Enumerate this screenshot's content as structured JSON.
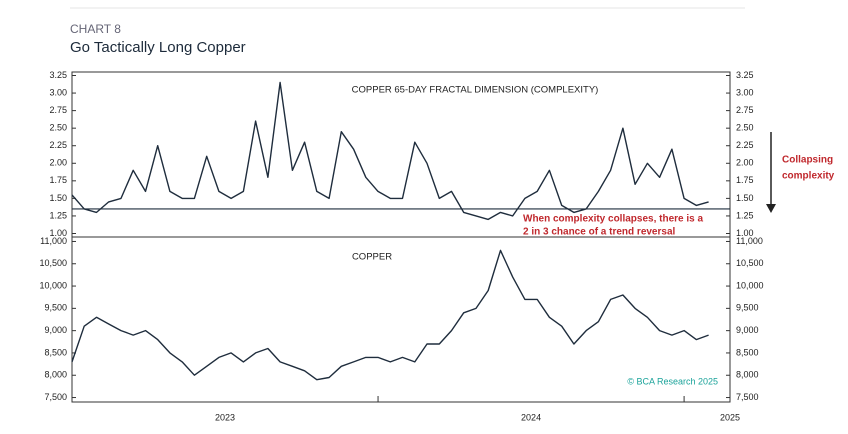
{
  "header": {
    "label": "CHART 8",
    "title": "Go Tactically Long Copper"
  },
  "footer": {
    "source": "© BCA Research 2025"
  },
  "chart_data": [
    {
      "type": "line",
      "title": "COPPER 65-DAY FRACTAL DIMENSION (COMPLEXITY)",
      "annotations": [
        "When complexity collapses, there is a",
        "2 in 3 chance of a trend reversal",
        "Collapsing",
        "complexity"
      ],
      "x": [
        2023.0,
        2023.04,
        2023.08,
        2023.12,
        2023.16,
        2023.2,
        2023.24,
        2023.28,
        2023.32,
        2023.36,
        2023.4,
        2023.44,
        2023.48,
        2023.52,
        2023.56,
        2023.6,
        2023.64,
        2023.68,
        2023.72,
        2023.76,
        2023.8,
        2023.84,
        2023.88,
        2023.92,
        2023.96,
        2024.0,
        2024.04,
        2024.08,
        2024.12,
        2024.16,
        2024.2,
        2024.24,
        2024.28,
        2024.32,
        2024.36,
        2024.4,
        2024.44,
        2024.48,
        2024.52,
        2024.56,
        2024.6,
        2024.64,
        2024.68,
        2024.72,
        2024.76,
        2024.8,
        2024.84,
        2024.88,
        2024.92,
        2024.96,
        2025.0,
        2025.04,
        2025.08
      ],
      "series": [
        {
          "name": "Fractal dimension",
          "color": "#1f2d3d",
          "values": [
            1.55,
            1.35,
            1.3,
            1.45,
            1.5,
            1.9,
            1.6,
            2.25,
            1.6,
            1.5,
            1.5,
            2.1,
            1.6,
            1.5,
            1.6,
            2.6,
            1.8,
            3.15,
            1.9,
            2.3,
            1.6,
            1.5,
            2.45,
            2.2,
            1.8,
            1.6,
            1.5,
            1.5,
            2.3,
            2.0,
            1.5,
            1.6,
            1.3,
            1.25,
            1.2,
            1.3,
            1.25,
            1.5,
            1.6,
            1.9,
            1.4,
            1.3,
            1.35,
            1.6,
            1.9,
            2.5,
            1.7,
            2.0,
            1.8,
            2.2,
            1.5,
            1.4,
            1.45
          ]
        }
      ],
      "reference_line": 1.35,
      "xlim": [
        2023.0,
        2025.15
      ],
      "xticks": [
        2023,
        2024,
        2025
      ],
      "ylim": [
        0.95,
        3.3
      ],
      "yticks": [
        3.25,
        {
          "value": 3,
          "label": "3.00"
        },
        2.75,
        {
          "value": 2.5,
          "label": "2.50"
        },
        2.25,
        {
          "value": 2,
          "label": "2.00"
        },
        1.75,
        {
          "value": 1.5,
          "label": "1.50"
        },
        1.25,
        {
          "value": 1,
          "label": "1.00"
        }
      ]
    },
    {
      "type": "line",
      "title": "COPPER",
      "x": [
        2023.0,
        2023.04,
        2023.08,
        2023.12,
        2023.16,
        2023.2,
        2023.24,
        2023.28,
        2023.32,
        2023.36,
        2023.4,
        2023.44,
        2023.48,
        2023.52,
        2023.56,
        2023.6,
        2023.64,
        2023.68,
        2023.72,
        2023.76,
        2023.8,
        2023.84,
        2023.88,
        2023.92,
        2023.96,
        2024.0,
        2024.04,
        2024.08,
        2024.12,
        2024.16,
        2024.2,
        2024.24,
        2024.28,
        2024.32,
        2024.36,
        2024.4,
        2024.44,
        2024.48,
        2024.52,
        2024.56,
        2024.6,
        2024.64,
        2024.68,
        2024.72,
        2024.76,
        2024.8,
        2024.84,
        2024.88,
        2024.92,
        2024.96,
        2025.0,
        2025.04,
        2025.08
      ],
      "series": [
        {
          "name": "Copper",
          "color": "#1f2d3d",
          "values": [
            8300,
            9100,
            9300,
            9150,
            9000,
            8900,
            9000,
            8800,
            8500,
            8300,
            8000,
            8200,
            8400,
            8500,
            8300,
            8500,
            8600,
            8300,
            8200,
            8100,
            7900,
            7950,
            8200,
            8300,
            8400,
            8400,
            8300,
            8400,
            8300,
            8700,
            8700,
            9000,
            9400,
            9500,
            9900,
            10800,
            10200,
            9700,
            9700,
            9300,
            9100,
            8700,
            9000,
            9200,
            9700,
            9800,
            9500,
            9300,
            9000,
            8900,
            9000,
            8800,
            8900
          ]
        }
      ],
      "xlim": [
        2023.0,
        2025.15
      ],
      "xticks": [
        2023,
        2024,
        2025
      ],
      "ylim": [
        7400,
        11100
      ],
      "yticks": [
        {
          "value": 11000,
          "label": "11,000"
        },
        {
          "value": 10500,
          "label": "10,500"
        },
        {
          "value": 10000,
          "label": "10,000"
        },
        {
          "value": 9500,
          "label": "9,500"
        },
        {
          "value": 9000,
          "label": "9,000"
        },
        {
          "value": 8500,
          "label": "8,500"
        },
        {
          "value": 8000,
          "label": "8,000"
        },
        {
          "value": 7500,
          "label": "7,500"
        }
      ]
    }
  ]
}
